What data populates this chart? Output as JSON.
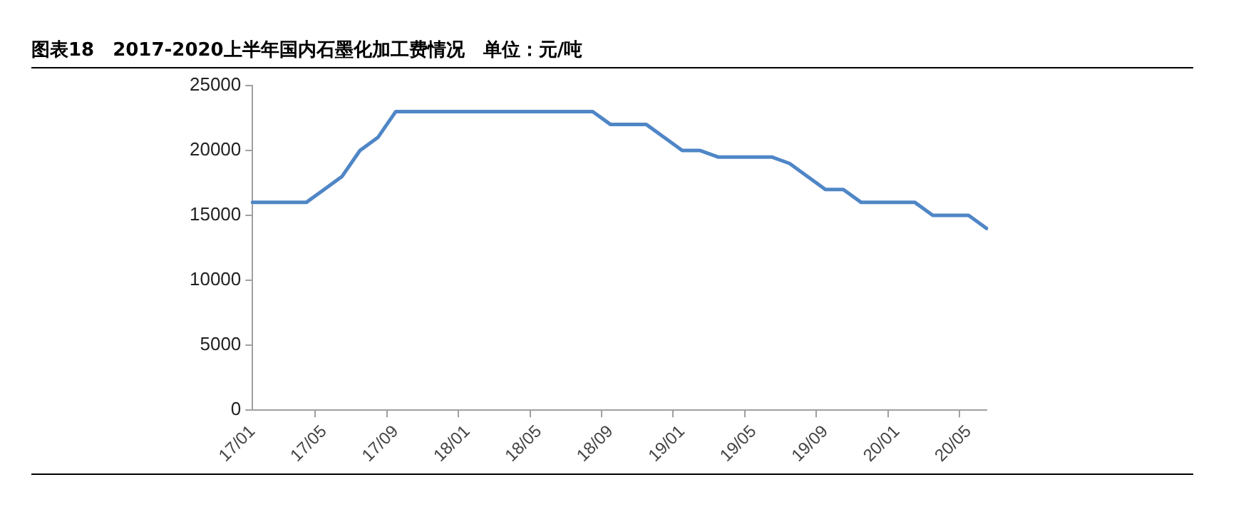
{
  "chart_data": {
    "type": "line",
    "title": "图表18　2017-2020上半年国内石墨化加工费情况　单位：元/吨",
    "categories": [
      "17/01",
      null,
      null,
      null,
      "17/05",
      null,
      null,
      null,
      "17/09",
      null,
      null,
      null,
      "18/01",
      null,
      null,
      null,
      "18/05",
      null,
      null,
      null,
      "18/09",
      null,
      null,
      null,
      "19/01",
      null,
      null,
      null,
      "19/05",
      null,
      null,
      null,
      "19/09",
      null,
      null,
      null,
      "20/01",
      null,
      null,
      null,
      "20/05",
      null
    ],
    "series": [
      {
        "color": "#4f86c6",
        "values": [
          16000,
          16000,
          16000,
          16000,
          17000,
          18000,
          20000,
          21000,
          23000,
          23000,
          23000,
          23000,
          23000,
          23000,
          23000,
          23000,
          23000,
          23000,
          23000,
          23000,
          22000,
          22000,
          22000,
          21000,
          20000,
          20000,
          19500,
          19500,
          19500,
          19500,
          19000,
          18000,
          17000,
          17000,
          16000,
          16000,
          16000,
          16000,
          15000,
          15000,
          15000,
          14000
        ]
      }
    ],
    "ylim": [
      0,
      25000
    ],
    "yticks": [
      0,
      5000,
      10000,
      15000,
      20000,
      25000
    ],
    "grid": false,
    "legend": false,
    "marker": "none",
    "line_style": "solid"
  }
}
